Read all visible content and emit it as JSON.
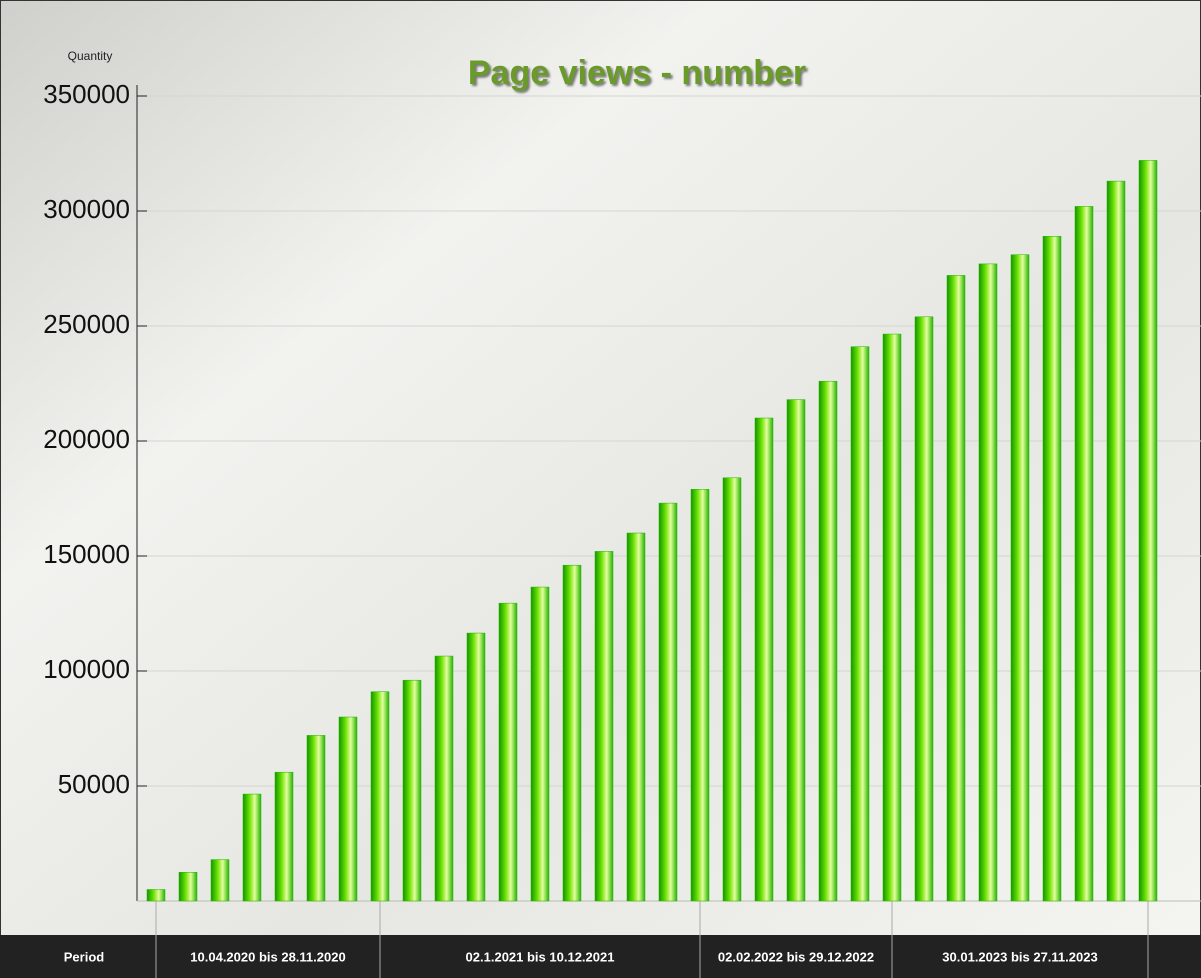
{
  "chart_data": {
    "type": "bar",
    "title": "Page views - number",
    "y_label": "Quantity",
    "x_label": "Period",
    "categories": [
      null,
      null,
      null,
      null,
      null,
      null,
      null,
      null,
      null,
      null,
      null,
      null,
      null,
      null,
      null,
      null,
      null,
      null,
      null,
      null,
      null,
      null,
      null,
      null,
      null,
      null,
      null,
      null,
      null,
      null,
      null,
      null
    ],
    "values": [
      5000,
      12500,
      18000,
      46500,
      56000,
      72000,
      80000,
      91000,
      96000,
      106500,
      116500,
      129500,
      136500,
      146000,
      152000,
      160000,
      173000,
      179000,
      184000,
      210000,
      218000,
      226000,
      241000,
      246500,
      254000,
      272000,
      277000,
      281000,
      289000,
      302000,
      313000,
      322000
    ],
    "color": "#22b400",
    "periods": [
      "10.04.2020 bis 28.11.2020",
      "02.1.2021 bis 10.12.2021",
      "02.02.2022 bis 29.12.2022",
      "30.01.2023 bis 27.11.2023"
    ],
    "ylim": [
      0,
      350000
    ],
    "yticks": [
      50000,
      100000,
      150000,
      200000,
      250000,
      300000,
      350000
    ],
    "grid": true
  }
}
